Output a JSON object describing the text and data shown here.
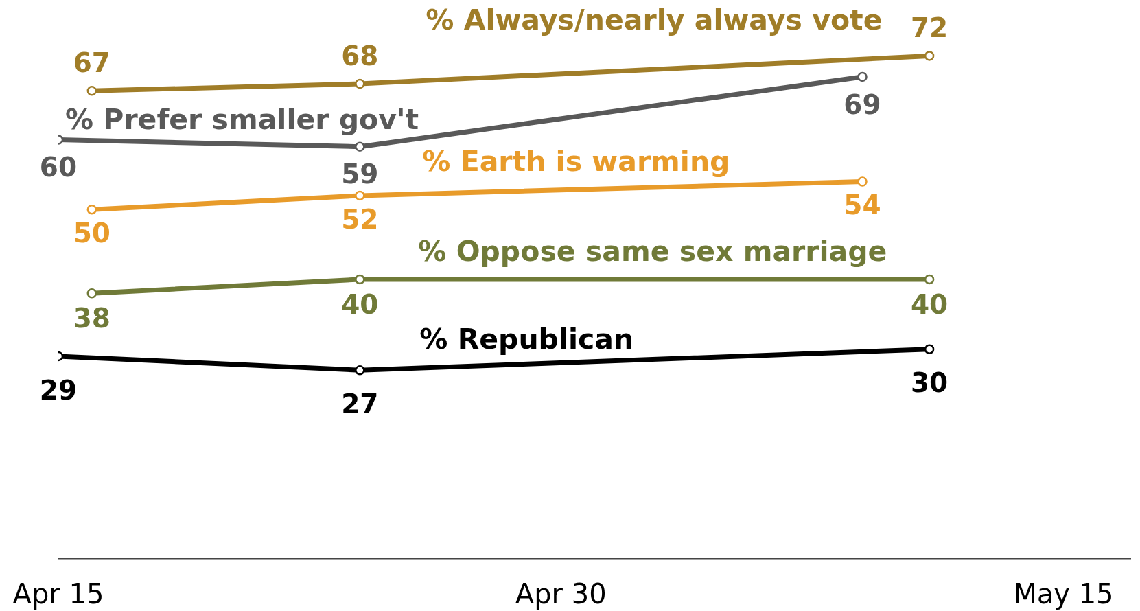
{
  "chart_data": {
    "type": "line",
    "xlim": [
      "--04-15",
      "--05-17"
    ],
    "xticks": [
      {
        "value": "--04-15",
        "label": "Apr 15"
      },
      {
        "value": "--04-30",
        "label": "Apr 30"
      },
      {
        "value": "--05-15",
        "label": "May 15"
      }
    ],
    "tick_labels": "x",
    "grid": false,
    "marker": "circle",
    "line_style": "solid",
    "data_labels": true,
    "series": [
      {
        "name": "% Always/nearly always vote",
        "color": "#a07d28",
        "x": [
          "--04-16",
          "--04-24",
          "--05-11"
        ],
        "values": [
          67,
          68,
          72
        ]
      },
      {
        "name": "% Prefer smaller gov't",
        "color": "#595959",
        "x": [
          "--04-15",
          "--04-24",
          "--05-09"
        ],
        "values": [
          60,
          59,
          69
        ]
      },
      {
        "name": "% Earth is warming",
        "color": "#e89b2a",
        "x": [
          "--04-16",
          "--04-24",
          "--05-09"
        ],
        "values": [
          50,
          52,
          54
        ]
      },
      {
        "name": "% Oppose same sex marriage",
        "color": "#707a38",
        "x": [
          "--04-16",
          "--04-24",
          "--05-11"
        ],
        "values": [
          38,
          40,
          40
        ]
      },
      {
        "name": "% Republican",
        "color": "#000000",
        "x": [
          "--04-15",
          "--04-24",
          "--05-11"
        ],
        "values": [
          29,
          27,
          30
        ]
      }
    ]
  }
}
